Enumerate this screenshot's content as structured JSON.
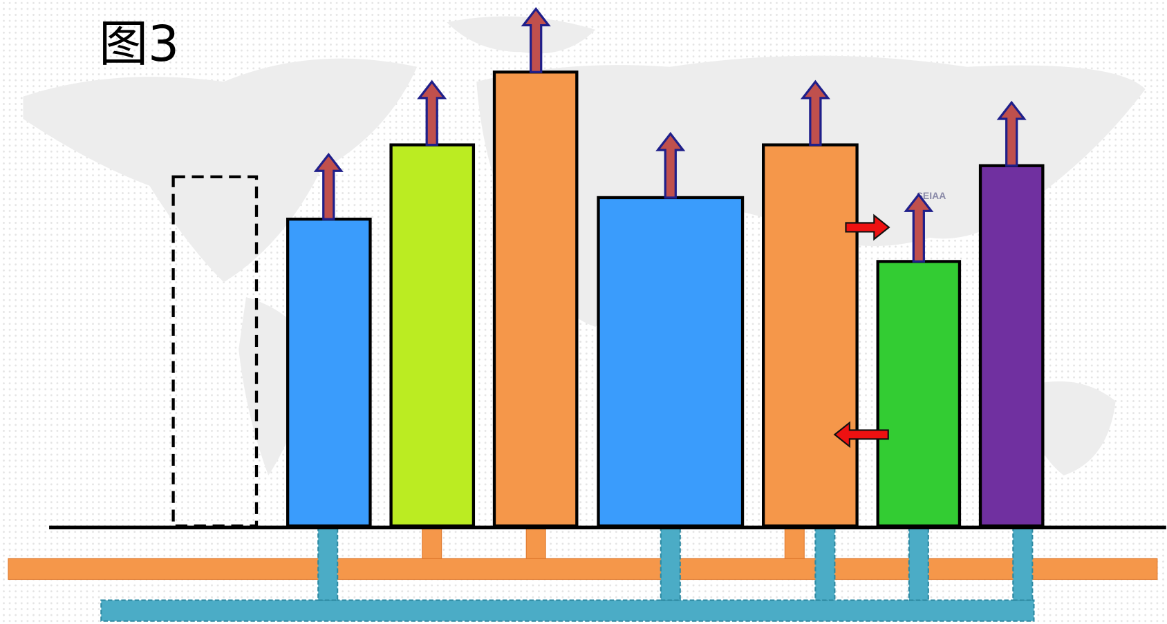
{
  "title": "图3",
  "watermark": "SEIAA"
}
